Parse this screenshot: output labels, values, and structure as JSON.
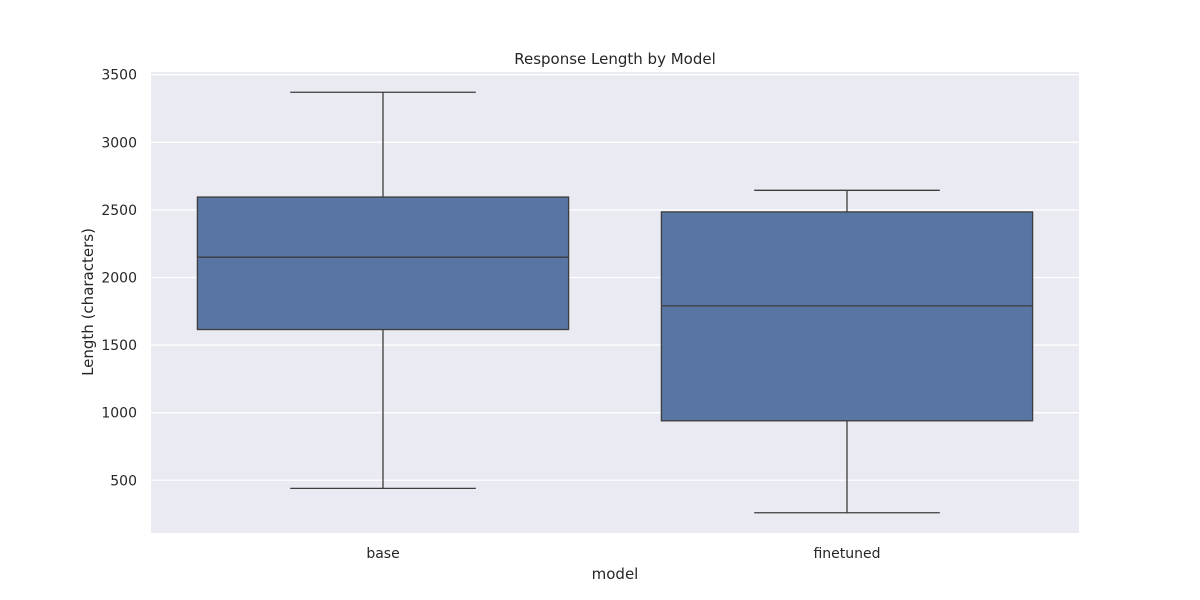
{
  "chart_data": {
    "type": "box",
    "title": "Response Length by Model",
    "xlabel": "model",
    "ylabel": "Length (characters)",
    "categories": [
      "base",
      "finetuned"
    ],
    "boxes": [
      {
        "category": "base",
        "whisker_low": 440,
        "q1": 1615,
        "median": 2150,
        "q3": 2595,
        "whisker_high": 3370
      },
      {
        "category": "finetuned",
        "whisker_low": 260,
        "q1": 940,
        "median": 1790,
        "q3": 2485,
        "whisker_high": 2645
      }
    ],
    "ylim": [
      110,
      3520
    ],
    "yticks": [
      500,
      1000,
      1500,
      2000,
      2500,
      3000,
      3500
    ],
    "grid": true,
    "colors": {
      "background": "#eaeaf2",
      "box_fill": "#5875a4",
      "line": "#3d3d3d",
      "grid": "#ffffff"
    }
  }
}
